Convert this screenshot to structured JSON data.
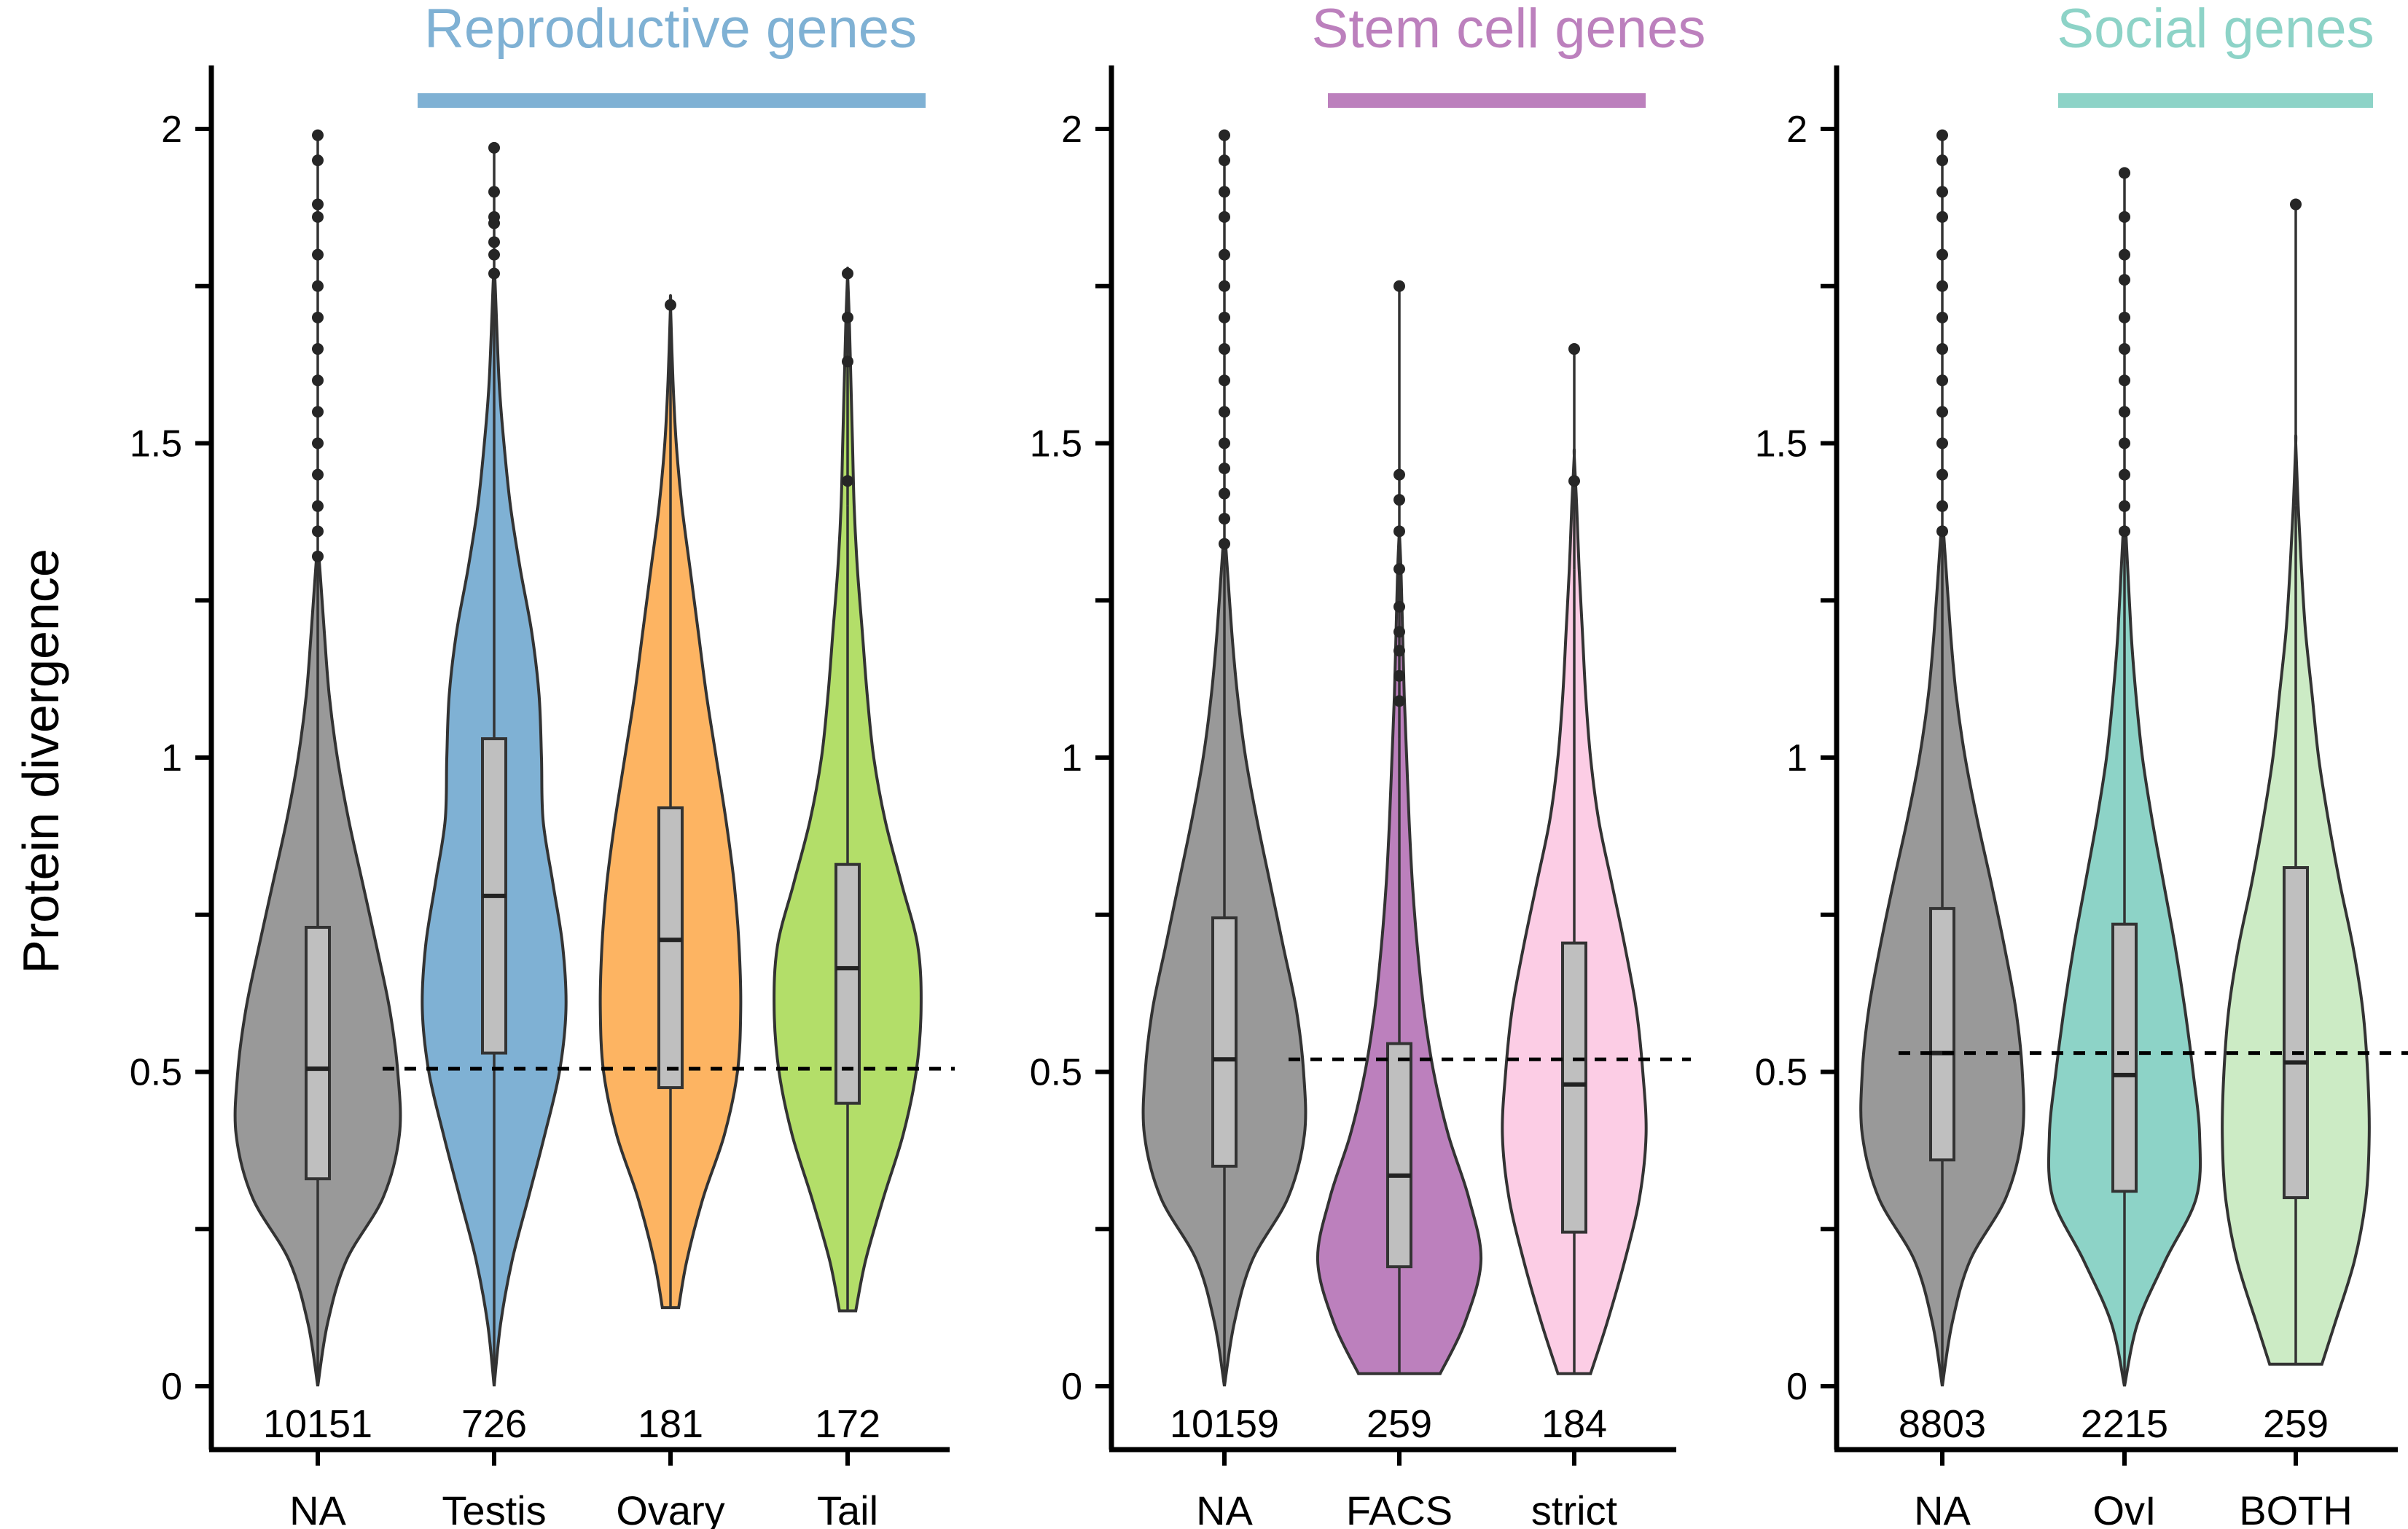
{
  "chart_data": {
    "type": "violin",
    "ylabel": "Protein divergence",
    "ylim": [
      -0.1,
      2.1
    ],
    "yticks": [
      {
        "value": 0,
        "label": "0"
      },
      {
        "value": 0.5,
        "label": "0.5"
      },
      {
        "value": 1,
        "label": "1"
      },
      {
        "value": 1.5,
        "label": "1.5"
      },
      {
        "value": 2,
        "label": "2"
      }
    ],
    "minor_yticks": [
      0.25,
      0.75,
      1.25,
      1.75
    ],
    "grid": false,
    "panels": [
      {
        "title": "Reproductive genes",
        "title_color": "#7fb1d4",
        "reference_line": 0.505,
        "categories": [
          {
            "label": "NA",
            "n": "10151",
            "color": "#999999",
            "box": {
              "min": 0.0,
              "q1": 0.33,
              "median": 0.505,
              "q3": 0.73,
              "max": 1.31
            },
            "outliers": [
              1.32,
              1.36,
              1.4,
              1.45,
              1.5,
              1.55,
              1.6,
              1.65,
              1.7,
              1.75,
              1.8,
              1.86,
              1.88,
              1.95,
              1.99
            ],
            "profile": [
              [
                0.0,
                0.0
              ],
              [
                0.1,
                0.12
              ],
              [
                0.2,
                0.35
              ],
              [
                0.3,
                0.8
              ],
              [
                0.4,
                1.0
              ],
              [
                0.5,
                0.98
              ],
              [
                0.6,
                0.88
              ],
              [
                0.7,
                0.72
              ],
              [
                0.8,
                0.55
              ],
              [
                0.9,
                0.38
              ],
              [
                1.0,
                0.24
              ],
              [
                1.1,
                0.14
              ],
              [
                1.2,
                0.08
              ],
              [
                1.31,
                0.02
              ],
              [
                1.32,
                0.0
              ]
            ]
          },
          {
            "label": "Testis",
            "n": "726",
            "color": "#7fb1d4",
            "box": {
              "min": 0.0,
              "q1": 0.53,
              "median": 0.78,
              "q3": 1.03,
              "max": 1.76
            },
            "outliers": [
              1.77,
              1.8,
              1.82,
              1.85,
              1.86,
              1.9,
              1.97
            ],
            "profile": [
              [
                0.0,
                0.0
              ],
              [
                0.1,
                0.08
              ],
              [
                0.2,
                0.22
              ],
              [
                0.3,
                0.42
              ],
              [
                0.4,
                0.62
              ],
              [
                0.5,
                0.8
              ],
              [
                0.6,
                0.88
              ],
              [
                0.7,
                0.84
              ],
              [
                0.8,
                0.72
              ],
              [
                0.9,
                0.6
              ],
              [
                1.0,
                0.58
              ],
              [
                1.1,
                0.55
              ],
              [
                1.2,
                0.46
              ],
              [
                1.3,
                0.32
              ],
              [
                1.4,
                0.2
              ],
              [
                1.5,
                0.12
              ],
              [
                1.6,
                0.06
              ],
              [
                1.76,
                0.01
              ],
              [
                1.77,
                0.0
              ]
            ]
          },
          {
            "label": "Ovary",
            "n": "181",
            "color": "#fdb462",
            "box": {
              "min": 0.125,
              "q1": 0.475,
              "median": 0.71,
              "q3": 0.92,
              "max": 1.72
            },
            "outliers": [
              1.72
            ],
            "profile": [
              [
                0.125,
                0.1
              ],
              [
                0.2,
                0.2
              ],
              [
                0.3,
                0.4
              ],
              [
                0.4,
                0.66
              ],
              [
                0.5,
                0.82
              ],
              [
                0.6,
                0.86
              ],
              [
                0.7,
                0.84
              ],
              [
                0.8,
                0.78
              ],
              [
                0.9,
                0.68
              ],
              [
                1.0,
                0.56
              ],
              [
                1.1,
                0.44
              ],
              [
                1.2,
                0.34
              ],
              [
                1.3,
                0.24
              ],
              [
                1.4,
                0.14
              ],
              [
                1.5,
                0.07
              ],
              [
                1.6,
                0.03
              ],
              [
                1.72,
                0.0
              ]
            ]
          },
          {
            "label": "Tail",
            "n": "172",
            "color": "#b3de69",
            "box": {
              "min": 0.12,
              "q1": 0.45,
              "median": 0.665,
              "q3": 0.83,
              "max": 1.4
            },
            "outliers": [
              1.44,
              1.63,
              1.7,
              1.77
            ],
            "profile": [
              [
                0.12,
                0.1
              ],
              [
                0.2,
                0.22
              ],
              [
                0.3,
                0.44
              ],
              [
                0.4,
                0.68
              ],
              [
                0.5,
                0.84
              ],
              [
                0.6,
                0.9
              ],
              [
                0.7,
                0.86
              ],
              [
                0.8,
                0.66
              ],
              [
                0.9,
                0.46
              ],
              [
                1.0,
                0.32
              ],
              [
                1.1,
                0.24
              ],
              [
                1.2,
                0.18
              ],
              [
                1.3,
                0.12
              ],
              [
                1.4,
                0.08
              ],
              [
                1.5,
                0.06
              ],
              [
                1.6,
                0.04
              ],
              [
                1.7,
                0.02
              ],
              [
                1.77,
                0.0
              ]
            ]
          }
        ]
      },
      {
        "title": "Stem cell genes",
        "title_color": "#bc80bd",
        "reference_line": 0.52,
        "categories": [
          {
            "label": "NA",
            "n": "10159",
            "color": "#999999",
            "box": {
              "min": 0.0,
              "q1": 0.35,
              "median": 0.52,
              "q3": 0.745,
              "max": 1.33
            },
            "outliers": [
              1.34,
              1.38,
              1.42,
              1.46,
              1.5,
              1.55,
              1.6,
              1.65,
              1.7,
              1.75,
              1.8,
              1.86,
              1.9,
              1.95,
              1.99
            ],
            "profile": [
              [
                0.0,
                0.0
              ],
              [
                0.1,
                0.12
              ],
              [
                0.2,
                0.34
              ],
              [
                0.3,
                0.78
              ],
              [
                0.4,
                0.98
              ],
              [
                0.5,
                0.97
              ],
              [
                0.6,
                0.88
              ],
              [
                0.7,
                0.72
              ],
              [
                0.8,
                0.56
              ],
              [
                0.9,
                0.4
              ],
              [
                1.0,
                0.26
              ],
              [
                1.1,
                0.16
              ],
              [
                1.2,
                0.09
              ],
              [
                1.33,
                0.02
              ],
              [
                1.34,
                0.0
              ]
            ]
          },
          {
            "label": "FACS",
            "n": "259",
            "color": "#bc80bd",
            "box": {
              "min": 0.02,
              "q1": 0.19,
              "median": 0.335,
              "q3": 0.545,
              "max": 1.03
            },
            "outliers": [
              1.09,
              1.13,
              1.17,
              1.2,
              1.24,
              1.3,
              1.36,
              1.41,
              1.45,
              1.75
            ],
            "profile": [
              [
                0.02,
                0.5
              ],
              [
                0.1,
                0.8
              ],
              [
                0.2,
                1.0
              ],
              [
                0.3,
                0.85
              ],
              [
                0.4,
                0.6
              ],
              [
                0.5,
                0.42
              ],
              [
                0.6,
                0.3
              ],
              [
                0.7,
                0.22
              ],
              [
                0.8,
                0.16
              ],
              [
                0.9,
                0.12
              ],
              [
                1.0,
                0.09
              ],
              [
                1.1,
                0.06
              ],
              [
                1.2,
                0.04
              ],
              [
                1.3,
                0.02
              ],
              [
                1.36,
                0.0
              ]
            ]
          },
          {
            "label": "strict",
            "n": "184",
            "color": "#fccde5",
            "box": {
              "min": 0.02,
              "q1": 0.245,
              "median": 0.48,
              "q3": 0.705,
              "max": 1.3
            },
            "outliers": [
              1.44,
              1.65
            ],
            "profile": [
              [
                0.02,
                0.2
              ],
              [
                0.1,
                0.4
              ],
              [
                0.2,
                0.62
              ],
              [
                0.3,
                0.8
              ],
              [
                0.4,
                0.88
              ],
              [
                0.5,
                0.84
              ],
              [
                0.6,
                0.76
              ],
              [
                0.7,
                0.62
              ],
              [
                0.8,
                0.46
              ],
              [
                0.9,
                0.3
              ],
              [
                1.0,
                0.2
              ],
              [
                1.1,
                0.14
              ],
              [
                1.2,
                0.1
              ],
              [
                1.3,
                0.06
              ],
              [
                1.4,
                0.03
              ],
              [
                1.48,
                0.0
              ]
            ]
          }
        ]
      },
      {
        "title": "Social genes",
        "title_color": "#8dd3c7",
        "reference_line": 0.53,
        "categories": [
          {
            "label": "NA",
            "n": "8803",
            "color": "#999999",
            "box": {
              "min": 0.0,
              "q1": 0.36,
              "median": 0.53,
              "q3": 0.76,
              "max": 1.35
            },
            "outliers": [
              1.36,
              1.4,
              1.45,
              1.5,
              1.55,
              1.6,
              1.65,
              1.7,
              1.75,
              1.8,
              1.86,
              1.9,
              1.95,
              1.99
            ],
            "profile": [
              [
                0.0,
                0.0
              ],
              [
                0.1,
                0.12
              ],
              [
                0.2,
                0.34
              ],
              [
                0.3,
                0.78
              ],
              [
                0.4,
                0.98
              ],
              [
                0.5,
                0.98
              ],
              [
                0.6,
                0.9
              ],
              [
                0.7,
                0.76
              ],
              [
                0.8,
                0.6
              ],
              [
                0.9,
                0.43
              ],
              [
                1.0,
                0.28
              ],
              [
                1.1,
                0.17
              ],
              [
                1.2,
                0.1
              ],
              [
                1.35,
                0.02
              ],
              [
                1.36,
                0.0
              ]
            ]
          },
          {
            "label": "OvI",
            "n": "2215",
            "color": "#8dd3c7",
            "box": {
              "min": 0.0,
              "q1": 0.31,
              "median": 0.495,
              "q3": 0.735,
              "max": 1.35
            },
            "outliers": [
              1.36,
              1.4,
              1.45,
              1.5,
              1.55,
              1.6,
              1.65,
              1.7,
              1.76,
              1.8,
              1.86,
              1.93
            ],
            "profile": [
              [
                0.0,
                0.0
              ],
              [
                0.1,
                0.16
              ],
              [
                0.2,
                0.5
              ],
              [
                0.3,
                0.88
              ],
              [
                0.4,
                0.92
              ],
              [
                0.5,
                0.84
              ],
              [
                0.6,
                0.74
              ],
              [
                0.7,
                0.62
              ],
              [
                0.8,
                0.48
              ],
              [
                0.9,
                0.34
              ],
              [
                1.0,
                0.22
              ],
              [
                1.1,
                0.14
              ],
              [
                1.2,
                0.08
              ],
              [
                1.35,
                0.02
              ],
              [
                1.36,
                0.0
              ]
            ]
          },
          {
            "label": "BOTH",
            "n": "259",
            "color": "#ccebc5",
            "box": {
              "min": 0.035,
              "q1": 0.3,
              "median": 0.515,
              "q3": 0.825,
              "max": 1.4
            },
            "outliers": [
              1.88
            ],
            "profile": [
              [
                0.035,
                0.32
              ],
              [
                0.1,
                0.48
              ],
              [
                0.2,
                0.72
              ],
              [
                0.3,
                0.86
              ],
              [
                0.4,
                0.9
              ],
              [
                0.5,
                0.88
              ],
              [
                0.6,
                0.82
              ],
              [
                0.7,
                0.7
              ],
              [
                0.8,
                0.54
              ],
              [
                0.9,
                0.4
              ],
              [
                1.0,
                0.28
              ],
              [
                1.1,
                0.2
              ],
              [
                1.2,
                0.12
              ],
              [
                1.3,
                0.07
              ],
              [
                1.4,
                0.03
              ],
              [
                1.5,
                0.0
              ]
            ]
          }
        ]
      }
    ]
  }
}
